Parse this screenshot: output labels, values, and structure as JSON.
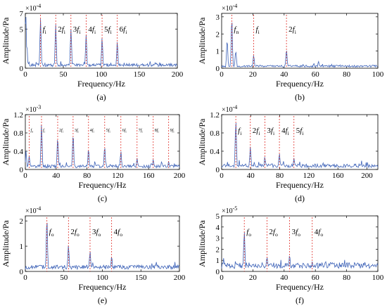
{
  "chart_data": [
    {
      "type": "line",
      "panel_label": "(a)",
      "xlabel": "Frequency/Hz",
      "ylabel": "Amplitude/Pa",
      "exponent": "-4",
      "xlim": [
        0,
        200
      ],
      "ylim": [
        0,
        7
      ],
      "xticks": [
        "0",
        "50",
        "100",
        "150",
        "200"
      ],
      "yticks": [
        "0",
        "5",
        "7"
      ],
      "markers": [
        {
          "x": 20,
          "base": "f",
          "sub": "i",
          "mult": ""
        },
        {
          "x": 40,
          "base": "f",
          "sub": "i",
          "mult": "2"
        },
        {
          "x": 60,
          "base": "f",
          "sub": "i",
          "mult": "3"
        },
        {
          "x": 80,
          "base": "f",
          "sub": "i",
          "mult": "4"
        },
        {
          "x": 101,
          "base": "f",
          "sub": "i",
          "mult": "5"
        },
        {
          "x": 121,
          "base": "f",
          "sub": "i",
          "mult": "6"
        }
      ],
      "peaks": [
        [
          0.5,
          6.9
        ],
        [
          2,
          3.0
        ],
        [
          20,
          6.3
        ],
        [
          40,
          5.6
        ],
        [
          60,
          5.0
        ],
        [
          80,
          4.3
        ],
        [
          101,
          3.9
        ],
        [
          121,
          3.4
        ]
      ],
      "noise": 0.6
    },
    {
      "type": "line",
      "panel_label": "(b)",
      "xlabel": "Frequency/Hz",
      "ylabel": "Amplitude/Pa",
      "exponent": "-4",
      "xlim": [
        0,
        100
      ],
      "ylim": [
        0,
        3.2
      ],
      "xticks": [
        "0",
        "20",
        "40",
        "60",
        "80",
        "100"
      ],
      "yticks": [
        "0",
        "1",
        "2",
        "3"
      ],
      "markers": [
        {
          "x": 6.5,
          "base": "f",
          "sub": "n",
          "mult": ""
        },
        {
          "x": 20.5,
          "base": "f",
          "sub": "i",
          "mult": ""
        },
        {
          "x": 41.5,
          "base": "f",
          "sub": "i",
          "mult": "2"
        }
      ],
      "peaks": [
        [
          3.5,
          1.6
        ],
        [
          6.5,
          2.9
        ],
        [
          9,
          1.0
        ],
        [
          20.5,
          0.75
        ],
        [
          41.5,
          1.1
        ],
        [
          62,
          0.4
        ]
      ],
      "noise": 0.18
    },
    {
      "type": "line",
      "panel_label": "(c)",
      "xlabel": "Frequency/Hz",
      "ylabel": "Amplitude/Pa",
      "exponent": "-3",
      "xlim": [
        0,
        200
      ],
      "ylim": [
        0,
        1.2
      ],
      "xticks": [
        "0",
        "40",
        "80",
        "120",
        "160",
        "200"
      ],
      "yticks": [
        "0",
        "0.4",
        "0.8",
        "1.2"
      ],
      "markers": [
        {
          "x": 5,
          "base": "f",
          "sub": "o",
          "mult": "",
          "small": true
        },
        {
          "x": 21,
          "base": "f",
          "sub": "i",
          "mult": "",
          "small": true
        },
        {
          "x": 42,
          "base": "f",
          "sub": "i",
          "mult": "2",
          "small": true
        },
        {
          "x": 62,
          "base": "f",
          "sub": "i",
          "mult": "3",
          "small": true
        },
        {
          "x": 82,
          "base": "f",
          "sub": "i",
          "mult": "4",
          "small": true
        },
        {
          "x": 103,
          "base": "f",
          "sub": "i",
          "mult": "5",
          "small": true
        },
        {
          "x": 124,
          "base": "f",
          "sub": "i",
          "mult": "6",
          "small": true
        },
        {
          "x": 145,
          "base": "f",
          "sub": "i",
          "mult": "7",
          "small": true
        },
        {
          "x": 166,
          "base": "f",
          "sub": "i",
          "mult": "8",
          "small": true
        },
        {
          "x": 186,
          "base": "f",
          "sub": "i",
          "mult": "9",
          "small": true
        }
      ],
      "peaks": [
        [
          1,
          0.35
        ],
        [
          5,
          0.3
        ],
        [
          21,
          1.0
        ],
        [
          42,
          0.7
        ],
        [
          62,
          0.75
        ],
        [
          82,
          0.45
        ],
        [
          103,
          0.5
        ],
        [
          124,
          0.4
        ],
        [
          145,
          0.25
        ],
        [
          166,
          0.22
        ],
        [
          186,
          0.18
        ]
      ],
      "noise": 0.1
    },
    {
      "type": "line",
      "panel_label": "(d)",
      "xlabel": "Frequency/Hz",
      "ylabel": "Amplitude/Pa",
      "exponent": "-4",
      "xlim": [
        0,
        215
      ],
      "ylim": [
        0,
        1.2
      ],
      "xticks": [
        "0",
        "40",
        "80",
        "120",
        "160",
        "200"
      ],
      "yticks": [
        "0",
        "0.4",
        "0.8",
        "1.2"
      ],
      "markers": [
        {
          "x": 19.5,
          "base": "f",
          "sub": "i",
          "mult": ""
        },
        {
          "x": 39.5,
          "base": "f",
          "sub": "i",
          "mult": "2"
        },
        {
          "x": 59.5,
          "base": "f",
          "sub": "i",
          "mult": "3"
        },
        {
          "x": 79.5,
          "base": "f",
          "sub": "i",
          "mult": "4"
        },
        {
          "x": 99.5,
          "base": "f",
          "sub": "i",
          "mult": "5"
        }
      ],
      "peaks": [
        [
          19.5,
          1.05
        ],
        [
          39.5,
          0.5
        ],
        [
          59.5,
          0.25
        ],
        [
          79.5,
          0.35
        ],
        [
          99.5,
          0.25
        ]
      ],
      "noise": 0.12
    },
    {
      "type": "line",
      "panel_label": "(e)",
      "xlabel": "Frequency/Hz",
      "ylabel": "Amplitude/Pa",
      "exponent": "-4",
      "xlim": [
        0,
        200
      ],
      "ylim": [
        0,
        2.2
      ],
      "xticks": [
        "0",
        "50",
        "100",
        "150",
        "200"
      ],
      "yticks": [
        "0",
        "1",
        "2"
      ],
      "markers": [
        {
          "x": 28,
          "base": "f",
          "sub": "o",
          "mult": ""
        },
        {
          "x": 56,
          "base": "f",
          "sub": "o",
          "mult": "2"
        },
        {
          "x": 84,
          "base": "f",
          "sub": "o",
          "mult": "3"
        },
        {
          "x": 112,
          "base": "f",
          "sub": "o",
          "mult": "4"
        }
      ],
      "peaks": [
        [
          28,
          2.1
        ],
        [
          56,
          1.05
        ],
        [
          84,
          0.8
        ],
        [
          112,
          0.6
        ]
      ],
      "noise": 0.25
    },
    {
      "type": "line",
      "panel_label": "(f)",
      "xlabel": "Frequency/Hz",
      "ylabel": "Amplitude/Pa",
      "exponent": "-5",
      "xlim": [
        0,
        100
      ],
      "ylim": [
        0,
        5
      ],
      "xticks": [
        "0",
        "20",
        "40",
        "60",
        "80",
        "100"
      ],
      "yticks": [
        "0",
        "1",
        "2",
        "3",
        "4",
        "5"
      ],
      "markers": [
        {
          "x": 14.5,
          "base": "f",
          "sub": "o",
          "mult": ""
        },
        {
          "x": 29,
          "base": "f",
          "sub": "o",
          "mult": "2"
        },
        {
          "x": 43.5,
          "base": "f",
          "sub": "o",
          "mult": "3"
        },
        {
          "x": 58,
          "base": "f",
          "sub": "o",
          "mult": "4"
        }
      ],
      "peaks": [
        [
          14.5,
          3.6
        ],
        [
          29,
          1.3
        ],
        [
          43.5,
          1.5
        ],
        [
          58,
          0.9
        ]
      ],
      "noise": 0.8
    }
  ],
  "colors": {
    "line": "#3e63b8",
    "marker": "#e0302a",
    "axis": "#000000"
  }
}
